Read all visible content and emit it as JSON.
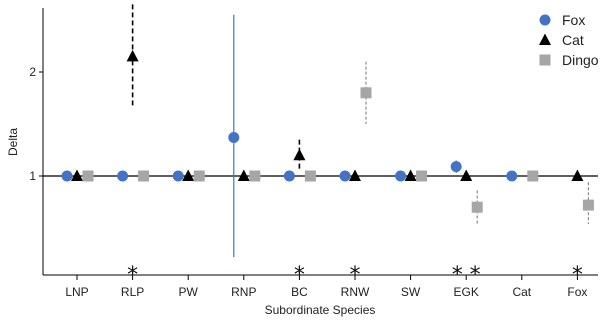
{
  "chart_data": {
    "type": "scatter",
    "title": "",
    "xlabel": "Subordinate Species",
    "ylabel": "Delta",
    "categories": [
      "LNP",
      "RLP",
      "PW",
      "RNP",
      "BC",
      "RNW",
      "SW",
      "EGK",
      "Cat",
      "Fox"
    ],
    "yticks": [
      "1",
      "2"
    ],
    "ylim": [
      0.2,
      2.6
    ],
    "reference_line": 1,
    "legend_position": "top-right",
    "series": [
      {
        "name": "Fox",
        "marker": "circle",
        "color": "#4472C4",
        "points": [
          {
            "category": "LNP",
            "value": 1.0
          },
          {
            "category": "RLP",
            "value": 1.0
          },
          {
            "category": "PW",
            "value": 1.0
          },
          {
            "category": "RNP",
            "value": 1.37,
            "low": 0.22,
            "high": 2.55
          },
          {
            "category": "BC",
            "value": 1.0
          },
          {
            "category": "RNW",
            "value": 1.0
          },
          {
            "category": "SW",
            "value": 1.0
          },
          {
            "category": "EGK",
            "value": 1.09,
            "low": 1.03,
            "high": 1.15
          },
          {
            "category": "Cat",
            "value": 1.0
          }
        ]
      },
      {
        "name": "Cat",
        "marker": "triangle",
        "color": "#000000",
        "points": [
          {
            "category": "LNP",
            "value": 1.0
          },
          {
            "category": "RLP",
            "value": 2.15,
            "low": 1.65,
            "high": 2.65
          },
          {
            "category": "PW",
            "value": 1.0
          },
          {
            "category": "RNP",
            "value": 1.0
          },
          {
            "category": "BC",
            "value": 1.2,
            "low": 1.05,
            "high": 1.35
          },
          {
            "category": "RNW",
            "value": 1.0
          },
          {
            "category": "SW",
            "value": 1.0
          },
          {
            "category": "EGK",
            "value": 1.0
          },
          {
            "category": "Fox",
            "value": 1.0
          }
        ]
      },
      {
        "name": "Dingo",
        "marker": "square",
        "color": "#A6A6A6",
        "points": [
          {
            "category": "LNP",
            "value": 1.0
          },
          {
            "category": "RLP",
            "value": 1.0
          },
          {
            "category": "PW",
            "value": 1.0
          },
          {
            "category": "RNP",
            "value": 1.0
          },
          {
            "category": "BC",
            "value": 1.0
          },
          {
            "category": "RNW",
            "value": 1.8,
            "low": 1.5,
            "high": 2.1
          },
          {
            "category": "SW",
            "value": 1.0
          },
          {
            "category": "EGK",
            "value": 0.7,
            "low": 0.54,
            "high": 0.86
          },
          {
            "category": "Cat",
            "value": 1.0
          },
          {
            "category": "Fox",
            "value": 0.72,
            "low": 0.54,
            "high": 0.94
          }
        ]
      }
    ],
    "significance": [
      {
        "category": "RLP",
        "label": "*"
      },
      {
        "category": "BC",
        "label": "*"
      },
      {
        "category": "RNW",
        "label": "*"
      },
      {
        "category": "EGK",
        "label": "* *"
      },
      {
        "category": "Fox",
        "label": "*"
      }
    ]
  }
}
